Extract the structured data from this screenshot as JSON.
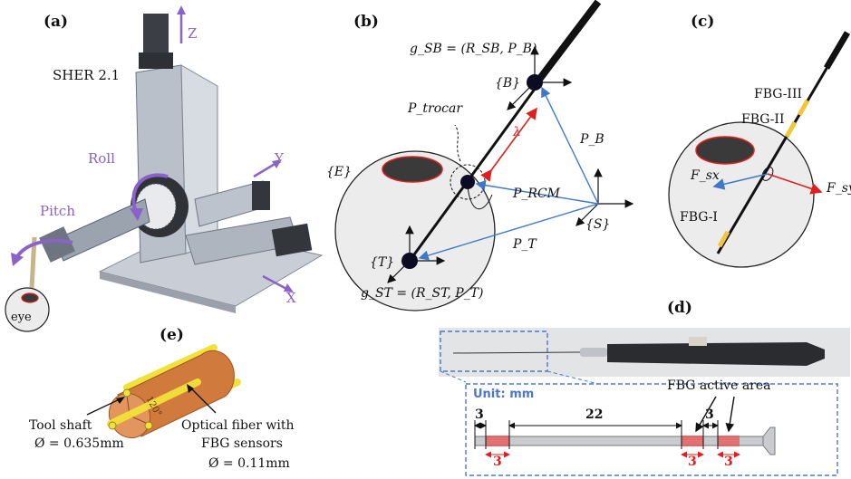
{
  "panels": {
    "a": {
      "label": "(a)",
      "robot_name": "SHER 2.1",
      "axis_z": "Z",
      "axis_y": "Y",
      "axis_x": "X",
      "roll": "Roll",
      "pitch": "Pitch",
      "eye": "eye"
    },
    "b": {
      "label": "(b)",
      "g_sb": "g_SB = (R_SB, P_B)",
      "frame_b": "{B}",
      "p_trocar": "P_trocar",
      "lambda": "λ",
      "p_b": "P_B",
      "frame_e": "{E}",
      "p_rcm": "P_RCM",
      "frame_s": "{S}",
      "frame_t": "{T}",
      "p_t": "P_T",
      "g_st": "g_ST = (R_ST, P_T)"
    },
    "c": {
      "label": "(c)",
      "fbg3": "FBG-III",
      "fbg2": "FBG-II",
      "fsx": "F_sx",
      "fsy": "F_sy",
      "fbg1": "FBG-I"
    },
    "d": {
      "label": "(d)",
      "unit": "Unit: mm",
      "active_area": "FBG active area",
      "dim_3a": "3",
      "dim_22": "22",
      "dim_3b": "3",
      "dim_red1": "3",
      "dim_red2": "3",
      "dim_red3": "3"
    },
    "e": {
      "label": "(e)",
      "angle": "120°",
      "tool_shaft": "Tool shaft",
      "tool_diam": "Ø = 0.635mm",
      "fiber_l1": "Optical fiber with",
      "fiber_l2": "FBG sensors",
      "fiber_diam": "Ø = 0.11mm"
    }
  },
  "colors": {
    "blue_vector": "#3f78c8",
    "red": "#e01e1e",
    "dark_spot": "#3a3a3a",
    "eye_fill": "#ececec",
    "copper": "#d07a3e",
    "fiber_yellow": "#f2e13a",
    "purple_arrow": "#8a62c8",
    "dashed_blue": "#4d78c8"
  }
}
